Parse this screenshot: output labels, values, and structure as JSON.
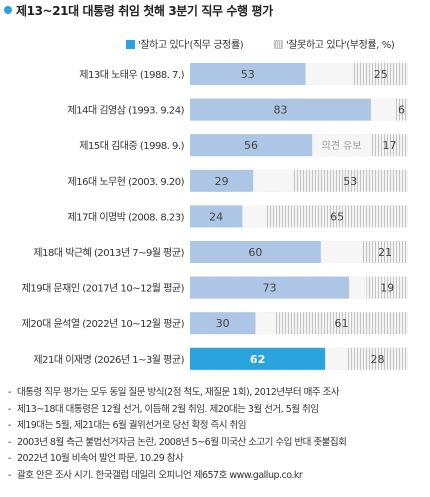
{
  "title": "제13~21대 대통령 취임 첫해 3분기 직무 수행 평가",
  "legend": {
    "positive": "'잘하고 있다'(직무 긍정률)",
    "negative": "'잘못하고 있다'(부정률, %)"
  },
  "colors": {
    "positive": "#aec6e6",
    "positive_highlight": "#2aa3df",
    "negative_hatch": "#bdbdbd",
    "text_dark": "#333333"
  },
  "chart_data": {
    "type": "bar",
    "stacked": true,
    "orientation": "horizontal",
    "categories": [
      "제13대 노태우 (1988. 7.)",
      "제14대 김영삼 (1993. 9.24)",
      "제15대 김대중 (1998. 9.)",
      "제16대 노무현 (2003. 9.20)",
      "제17대 이명박 (2008. 8.23)",
      "제18대 박근혜 (2013년 7~9월 평균)",
      "제19대 문재인 (2017년 10~12월 평균)",
      "제20대 윤석열 (2022년 10~12월 평균)",
      "제21대 이재명 (2026년 1~3월 평균)"
    ],
    "series": [
      {
        "name": "'잘하고 있다'(직무 긍정률)",
        "values": [
          53,
          83,
          56,
          29,
          24,
          60,
          73,
          30,
          62
        ]
      },
      {
        "name": "'잘못하고 있다'(부정률, %)",
        "values": [
          25,
          6,
          17,
          53,
          65,
          21,
          19,
          61,
          28
        ]
      }
    ],
    "annotations": [
      {
        "category_index": 2,
        "text": "의견 유보"
      }
    ],
    "highlight_index": 8,
    "xlim": [
      0,
      100
    ]
  },
  "notes": [
    "대통령 직무 평가는 모두 동일 질문 방식(2점 척도, 재질문 1회), 2012년부터 매주 조사",
    "제13~18대 대통령은 12월 선거, 이듬해 2월 취임. 제20대는 3월 선거, 5월 취임",
    "제19대는 5월, 제21대는 6월 궐위선거로 당선 확정 즉시 취임",
    "2003년 8월 측근 불법선거자금 논란, 2008년 5~6월 미국산 소고기 수입 반대 촛불집회",
    "2022년 10월 비속어 발언 파문, 10.29 참사",
    "괄호 안은 조사 시기. 한국갤럽 데일리 오피니언 제657호 www.gallup.co.kr"
  ]
}
